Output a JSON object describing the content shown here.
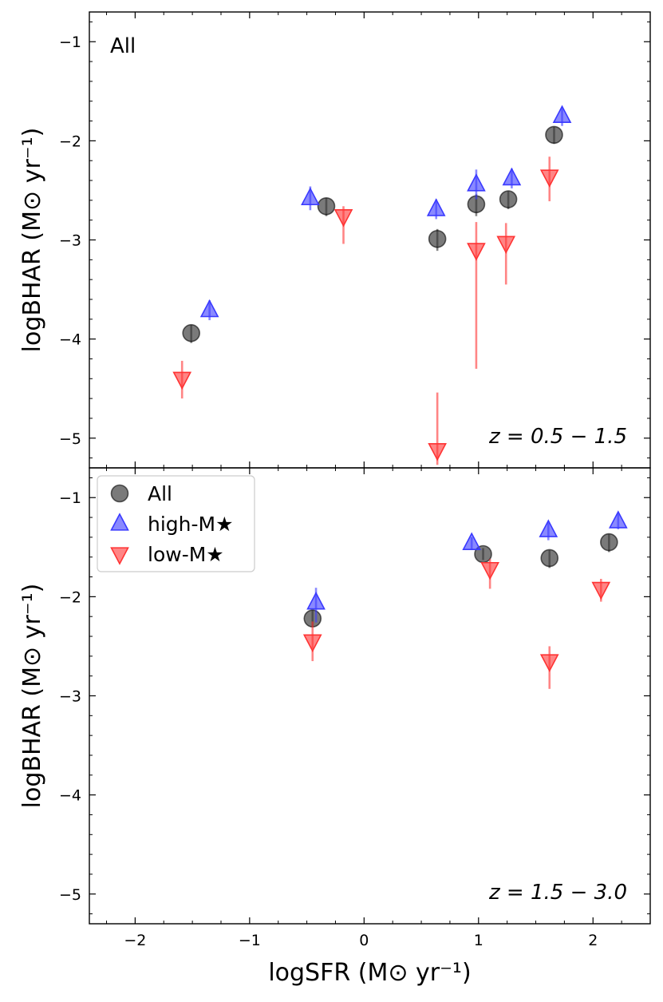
{
  "chart_data": {
    "type": "scatter",
    "shared_x": {
      "label": "logSFR (M⊙ yr⁻¹)",
      "lim": [
        -2.4,
        2.5
      ],
      "ticks": [
        -2,
        -1,
        0,
        1,
        2
      ],
      "tick_labels": [
        "−2",
        "−1",
        "0",
        "1",
        "2"
      ]
    },
    "panels": [
      {
        "name": "top",
        "annotation_title": "All",
        "annotation_z": "z = 0.5 − 1.5",
        "ylabel": "logBHAR (M⊙ yr⁻¹)",
        "ylim": [
          -5.3,
          -0.7
        ],
        "yticks": [
          -1,
          -2,
          -3,
          -4,
          -5
        ],
        "ytick_labels": [
          "−1",
          "−2",
          "−3",
          "−4",
          "−5"
        ],
        "series": [
          {
            "name": "All",
            "marker": "circle",
            "color": "#333333",
            "points": [
              {
                "x": -1.51,
                "y": -3.94,
                "elo": 0.1,
                "ehi": 0.08
              },
              {
                "x": -0.33,
                "y": -2.66,
                "elo": 0.1,
                "ehi": 0.08
              },
              {
                "x": 0.64,
                "y": -2.99,
                "elo": 0.12,
                "ehi": 0.1
              },
              {
                "x": 0.98,
                "y": -2.64,
                "elo": 0.12,
                "ehi": 0.1
              },
              {
                "x": 1.26,
                "y": -2.59,
                "elo": 0.1,
                "ehi": 0.08
              },
              {
                "x": 1.66,
                "y": -1.94,
                "elo": 0.09,
                "ehi": 0.08
              }
            ]
          },
          {
            "name": "high-M★",
            "marker": "triangle-up",
            "color": "#3a3aff",
            "points": [
              {
                "x": -1.35,
                "y": -3.71,
                "elo": 0.1,
                "ehi": 0.1
              },
              {
                "x": -0.47,
                "y": -2.58,
                "elo": 0.12,
                "ehi": 0.12
              },
              {
                "x": 0.63,
                "y": -2.69,
                "elo": 0.1,
                "ehi": 0.1
              },
              {
                "x": 0.98,
                "y": -2.44,
                "elo": 0.15,
                "ehi": 0.15
              },
              {
                "x": 1.29,
                "y": -2.38,
                "elo": 0.1,
                "ehi": 0.1
              },
              {
                "x": 1.73,
                "y": -1.75,
                "elo": 0.1,
                "ehi": 0.08
              }
            ]
          },
          {
            "name": "low-M★",
            "marker": "triangle-down",
            "color": "#ff3333",
            "points": [
              {
                "x": -1.59,
                "y": -4.4,
                "elo": 0.2,
                "ehi": 0.18
              },
              {
                "x": -0.18,
                "y": -2.76,
                "elo": 0.28,
                "ehi": 0.1
              },
              {
                "x": 0.64,
                "y": -5.12,
                "elo": 0.15,
                "ehi": 0.58
              },
              {
                "x": 0.98,
                "y": -3.1,
                "elo": 1.2,
                "ehi": 0.28
              },
              {
                "x": 1.24,
                "y": -3.03,
                "elo": 0.42,
                "ehi": 0.2
              },
              {
                "x": 1.62,
                "y": -2.36,
                "elo": 0.25,
                "ehi": 0.2
              }
            ]
          }
        ]
      },
      {
        "name": "bottom",
        "annotation_z": "z = 1.5 − 3.0",
        "ylabel": "logBHAR (M⊙ yr⁻¹)",
        "ylim": [
          -5.3,
          -0.7
        ],
        "yticks": [
          -1,
          -2,
          -3,
          -4,
          -5
        ],
        "ytick_labels": [
          "−1",
          "−2",
          "−3",
          "−4",
          "−5"
        ],
        "series": [
          {
            "name": "All",
            "marker": "circle",
            "color": "#333333",
            "points": [
              {
                "x": -0.45,
                "y": -2.22,
                "elo": 0.08,
                "ehi": 0.08
              },
              {
                "x": 1.04,
                "y": -1.57,
                "elo": 0.06,
                "ehi": 0.06
              },
              {
                "x": 1.62,
                "y": -1.61,
                "elo": 0.1,
                "ehi": 0.08
              },
              {
                "x": 2.14,
                "y": -1.45,
                "elo": 0.1,
                "ehi": 0.08
              }
            ]
          },
          {
            "name": "high-M★",
            "marker": "triangle-up",
            "color": "#3a3aff",
            "points": [
              {
                "x": -0.42,
                "y": -2.06,
                "elo": 0.2,
                "ehi": 0.15
              },
              {
                "x": 0.94,
                "y": -1.46,
                "elo": 0.06,
                "ehi": 0.06
              },
              {
                "x": 1.61,
                "y": -1.33,
                "elo": 0.1,
                "ehi": 0.08
              },
              {
                "x": 2.22,
                "y": -1.24,
                "elo": 0.08,
                "ehi": 0.08
              }
            ]
          },
          {
            "name": "low-M★",
            "marker": "triangle-down",
            "color": "#ff3333",
            "points": [
              {
                "x": -0.45,
                "y": -2.45,
                "elo": 0.2,
                "ehi": 0.2
              },
              {
                "x": 1.1,
                "y": -1.72,
                "elo": 0.2,
                "ehi": 0.1
              },
              {
                "x": 1.62,
                "y": -2.65,
                "elo": 0.28,
                "ehi": 0.15
              },
              {
                "x": 2.07,
                "y": -1.92,
                "elo": 0.13,
                "ehi": 0.1
              }
            ]
          }
        ]
      }
    ],
    "legend": {
      "placement": "top-left of bottom panel",
      "entries": [
        {
          "label": "All",
          "marker": "circle",
          "color": "#333333"
        },
        {
          "label": "high-M★",
          "marker": "triangle-up",
          "color": "#3a3aff"
        },
        {
          "label": "low-M★",
          "marker": "triangle-down",
          "color": "#ff3333"
        }
      ]
    }
  }
}
